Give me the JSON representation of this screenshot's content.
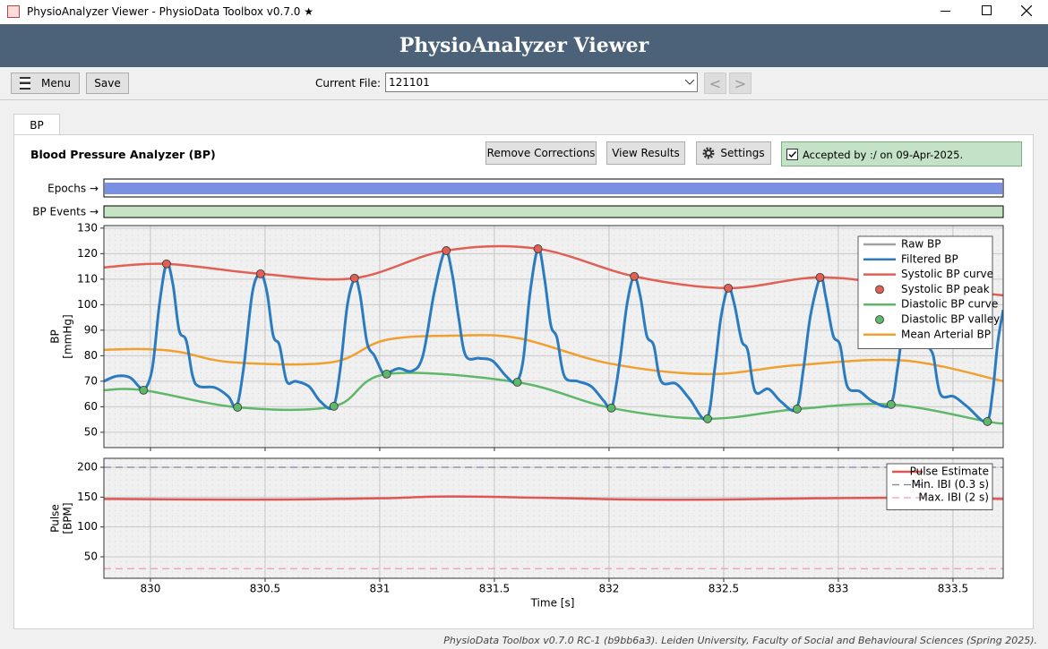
{
  "window": {
    "title": "PhysioAnalyzer Viewer - PhysioData Toolbox v0.7.0 ★"
  },
  "header": {
    "title": "PhysioAnalyzer Viewer"
  },
  "toolbar": {
    "menu": "Menu",
    "save": "Save",
    "file_label": "Current File:",
    "file": "121101",
    "prev": "<",
    "next": ">"
  },
  "tab": "BP",
  "panel": {
    "title": "Blood Pressure Analyzer (BP)",
    "buttons": [
      "Remove Corrections",
      "View Results",
      "Settings"
    ],
    "status": "Accepted by :/ on 09-Apr-2025."
  },
  "tracks": {
    "epochs": "Epochs →",
    "events": "BP Events →"
  },
  "time_axis": {
    "label": "Time [s]",
    "xlim": [
      829.797,
      833.719
    ],
    "xticks": [
      830,
      830.5,
      831,
      831.5,
      832,
      832.5,
      833,
      833.5
    ]
  },
  "bp_chart": {
    "type": "line",
    "ylabel": [
      "BP",
      "[mmHg]"
    ],
    "ylim": [
      44,
      131
    ],
    "yticks": [
      50,
      60,
      70,
      80,
      90,
      100,
      110,
      120,
      130
    ],
    "grid": true,
    "legend": "upper right",
    "series": [
      {
        "name": "Raw BP",
        "color": "#a0a0a0"
      },
      {
        "name": "Filtered BP",
        "color": "#2a7bbf",
        "x": [
          829.797,
          829.852,
          829.91,
          829.949,
          829.973,
          830.008,
          830.039,
          830.07,
          830.098,
          830.125,
          830.156,
          830.184,
          830.211,
          830.281,
          830.34,
          830.375,
          830.406,
          830.445,
          830.48,
          830.508,
          830.535,
          830.563,
          830.594,
          830.633,
          830.691,
          830.742,
          830.797,
          830.828,
          830.859,
          830.891,
          830.914,
          830.945,
          830.977,
          831.008,
          831.023,
          831.082,
          831.141,
          831.188,
          831.238,
          831.285,
          831.316,
          831.344,
          831.375,
          831.434,
          831.492,
          831.551,
          831.594,
          831.625,
          831.656,
          831.691,
          831.719,
          831.746,
          831.773,
          831.805,
          831.863,
          831.922,
          831.98,
          832.012,
          832.047,
          832.078,
          832.109,
          832.137,
          832.164,
          832.195,
          832.227,
          832.293,
          832.352,
          832.426,
          832.461,
          832.488,
          832.52,
          832.547,
          832.578,
          832.605,
          832.637,
          832.695,
          832.75,
          832.816,
          832.848,
          832.879,
          832.922,
          832.945,
          832.977,
          833.008,
          833.039,
          833.094,
          833.152,
          833.227,
          833.258,
          833.289,
          833.328,
          833.359,
          833.387,
          833.414,
          833.445,
          833.504,
          833.563,
          833.645,
          833.672,
          833.695,
          833.719
        ],
        "values": [
          70,
          72,
          71.5,
          68,
          66.5,
          75,
          100,
          116,
          108,
          90,
          86,
          72,
          68,
          67.5,
          64,
          60,
          75,
          105,
          112,
          105,
          88,
          84,
          70,
          70,
          68,
          62,
          60,
          75,
          100,
          110,
          104,
          85,
          80,
          74,
          72.8,
          75,
          74,
          80,
          105,
          121,
          112,
          95,
          80,
          79,
          78,
          72,
          69.6,
          78,
          105,
          122,
          110,
          92,
          87,
          72,
          70,
          68,
          62,
          59.5,
          78,
          100,
          111,
          103,
          88,
          84,
          70,
          69,
          63,
          55.3,
          75,
          95,
          106.5,
          100,
          86,
          82,
          66,
          67,
          62,
          59.1,
          75,
          96,
          110.7,
          103,
          88,
          84,
          68,
          66,
          62,
          60.9,
          75,
          95,
          106,
          99,
          85,
          80,
          65,
          64,
          60,
          54.2,
          65,
          85,
          98
        ]
      },
      {
        "name": "Systolic BP curve",
        "color": "#e06055",
        "x": [
          829.797,
          830.07,
          830.48,
          830.89,
          831.29,
          831.69,
          832.11,
          832.52,
          832.92,
          833.33,
          833.719
        ],
        "values": [
          114.6,
          116,
          112.1,
          110.4,
          121.2,
          121.9,
          111.1,
          106.5,
          110.7,
          107,
          103.7
        ]
      },
      {
        "name": "Systolic BP peak",
        "color": "#e06055",
        "marker": true,
        "x": [
          830.07,
          830.48,
          830.89,
          831.29,
          831.69,
          832.11,
          832.52,
          832.92
        ],
        "values": [
          116,
          112.1,
          110.4,
          121.2,
          121.9,
          111.1,
          106.5,
          110.7
        ]
      },
      {
        "name": "Diastolic BP curve",
        "color": "#5fb86a",
        "x": [
          829.797,
          829.97,
          830.38,
          830.8,
          831.03,
          831.6,
          832.01,
          832.43,
          832.82,
          833.23,
          833.65,
          833.719
        ],
        "values": [
          66.5,
          66.5,
          59.8,
          60.2,
          72.8,
          69.6,
          59.5,
          55.3,
          59.1,
          60.9,
          54.2,
          53.5
        ]
      },
      {
        "name": "Diastolic BP valley",
        "color": "#5fb86a",
        "marker": true,
        "x": [
          829.97,
          830.38,
          830.8,
          831.03,
          831.6,
          832.01,
          832.43,
          832.82,
          833.23,
          833.65
        ],
        "values": [
          66.5,
          59.8,
          60.2,
          72.8,
          69.6,
          59.5,
          55.3,
          59.1,
          60.9,
          54.2
        ]
      },
      {
        "name": "Mean Arterial BP",
        "color": "#f0a030",
        "x": [
          829.797,
          829.969,
          830.125,
          830.359,
          830.789,
          831.023,
          831.336,
          831.609,
          832.0,
          832.43,
          832.82,
          833.289,
          833.719
        ],
        "values": [
          82.3,
          82.6,
          81.5,
          77.4,
          77.4,
          86.1,
          87.9,
          86.8,
          77,
          72.8,
          76.3,
          78.1,
          70
        ]
      }
    ]
  },
  "pulse_chart": {
    "type": "line",
    "ylabel": [
      "Pulse",
      "[BPM]"
    ],
    "ylim": [
      14,
      215
    ],
    "yticks": [
      50,
      100,
      150,
      200
    ],
    "grid": true,
    "legend": "upper right",
    "series": [
      {
        "name": "Pulse Estimate",
        "color": "#e05555",
        "x": [
          829.797,
          830.2,
          830.6,
          831,
          831.3,
          831.7,
          832.1,
          832.5,
          832.9,
          833.3,
          833.719
        ],
        "values": [
          147,
          146,
          146,
          148,
          151,
          149,
          146,
          146,
          148,
          149,
          147
        ]
      },
      {
        "name": "Min. IBI (0.3 s)",
        "color": "#8080a0",
        "dash": true,
        "level": 200
      },
      {
        "name": "Max. IBI (2 s)",
        "color": "#f0a0b4",
        "dash": true,
        "level": 30
      }
    ]
  },
  "footer": "PhysioData Toolbox v0.7.0 RC-1 (b9bb6a3). Leiden University, Faculty of Social and Behavioural Sciences (Spring 2025)."
}
